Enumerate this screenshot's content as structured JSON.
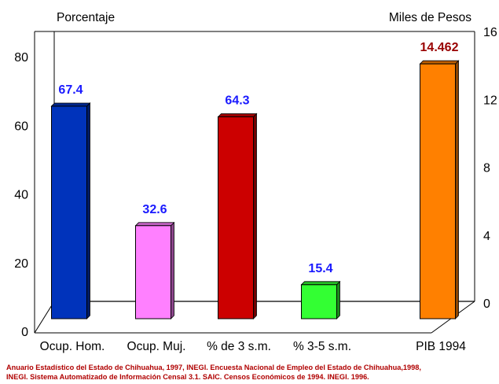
{
  "chart_data": {
    "type": "bar",
    "title": "",
    "left_axis_label": "Porcentaje",
    "right_axis_label": "Miles de Pesos",
    "left_axis": {
      "min": 0,
      "max": 80,
      "ticks": [
        "0",
        "20",
        "40",
        "60",
        "80"
      ]
    },
    "right_axis": {
      "min": 0,
      "max": 16,
      "ticks": [
        "0",
        "4",
        "8",
        "12",
        "16"
      ]
    },
    "categories": [
      "Ocup. Hom.",
      "Ocup. Muj.",
      "% de 3 s.m.",
      "% 3-5 s.m.",
      "PIB 1994"
    ],
    "bars": [
      {
        "category": "Ocup. Hom.",
        "value": 67.4,
        "axis": "left",
        "label": "67.4",
        "color": "#0033bb",
        "label_color": "#1a1aff"
      },
      {
        "category": "Ocup. Muj.",
        "value": 32.6,
        "axis": "left",
        "label": "32.6",
        "color": "#ff80ff",
        "label_color": "#1a1aff"
      },
      {
        "category": "% de 3 s.m.",
        "value": 64.3,
        "axis": "left",
        "label": "64.3",
        "color": "#cc0000",
        "label_color": "#1a1aff"
      },
      {
        "category": "% 3-5 s.m.",
        "value": 15.4,
        "axis": "left",
        "label": "15.4",
        "color": "#33ff33",
        "label_color": "#1a1aff"
      },
      {
        "category": "PIB 1994",
        "value": 14.462,
        "axis": "right",
        "label": "14.462",
        "color": "#ff8000",
        "label_color": "#990000"
      }
    ],
    "grid": false,
    "legend": "none"
  },
  "source": {
    "line1": "Anuario Estadístico del Estado de Chihuahua, 1997, INEGI. Encuesta Nacional de Empleo del Estado de Chihuahua,1998,",
    "line2": "INEGI. Sistema Automatizado de Información Censal 3.1. SAIC. Censos Económicos de 1994. INEGI. 1996."
  }
}
